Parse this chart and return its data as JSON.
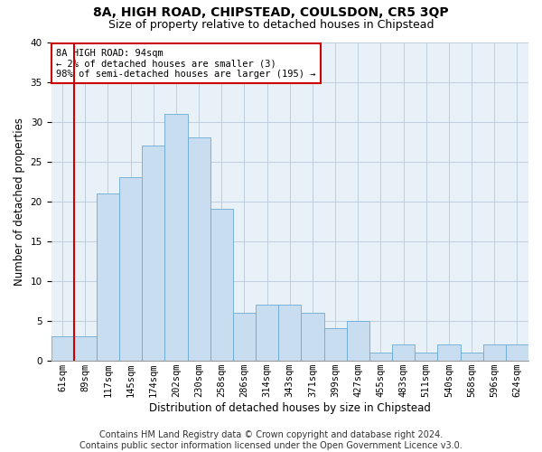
{
  "title": "8A, HIGH ROAD, CHIPSTEAD, COULSDON, CR5 3QP",
  "subtitle": "Size of property relative to detached houses in Chipstead",
  "xlabel": "Distribution of detached houses by size in Chipstead",
  "ylabel": "Number of detached properties",
  "categories": [
    "61sqm",
    "89sqm",
    "117sqm",
    "145sqm",
    "174sqm",
    "202sqm",
    "230sqm",
    "258sqm",
    "286sqm",
    "314sqm",
    "343sqm",
    "371sqm",
    "399sqm",
    "427sqm",
    "455sqm",
    "483sqm",
    "511sqm",
    "540sqm",
    "568sqm",
    "596sqm",
    "624sqm"
  ],
  "values": [
    3,
    3,
    21,
    23,
    27,
    31,
    28,
    19,
    6,
    7,
    7,
    6,
    4,
    5,
    1,
    2,
    1,
    2,
    1,
    2,
    2
  ],
  "bar_color": "#c9ddf0",
  "bar_edgecolor": "#6aaad4",
  "red_line_x": 1,
  "ylim": [
    0,
    40
  ],
  "yticks": [
    0,
    5,
    10,
    15,
    20,
    25,
    30,
    35,
    40
  ],
  "annotation_lines": [
    "8A HIGH ROAD: 94sqm",
    "← 2% of detached houses are smaller (3)",
    "98% of semi-detached houses are larger (195) →"
  ],
  "annotation_box_facecolor": "#ffffff",
  "annotation_box_edgecolor": "#cc0000",
  "footer_line1": "Contains HM Land Registry data © Crown copyright and database right 2024.",
  "footer_line2": "Contains public sector information licensed under the Open Government Licence v3.0.",
  "background_color": "#ffffff",
  "axes_facecolor": "#e8f0f8",
  "grid_color": "#c0cedd",
  "title_fontsize": 10,
  "subtitle_fontsize": 9,
  "ylabel_fontsize": 8.5,
  "xlabel_fontsize": 8.5,
  "tick_fontsize": 7.5,
  "annotation_fontsize": 7.5,
  "footer_fontsize": 7
}
